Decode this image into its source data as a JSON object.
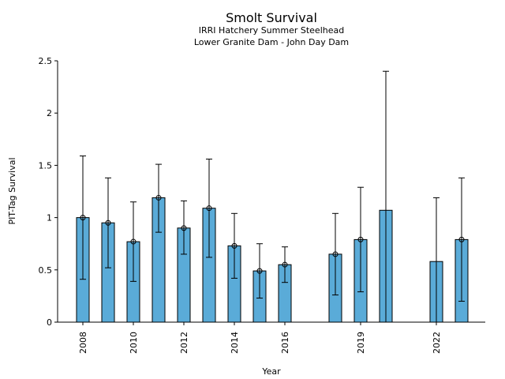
{
  "chart_data": {
    "type": "bar",
    "title": "Smolt Survival",
    "subtitle_line1": "IRRI Hatchery Summer Steelhead",
    "subtitle_line2": "Lower Granite Dam - John Day Dam",
    "xlabel": "Year",
    "ylabel": "PIT-Tag Survival",
    "ylim": [
      0,
      2.5
    ],
    "xlim": [
      2007.5,
      2023.5
    ],
    "yticks": [
      0,
      0.5,
      1,
      1.5,
      2,
      2.5
    ],
    "ytick_labels": [
      "0",
      "0.5",
      "1",
      "1.5",
      "2",
      "2.5"
    ],
    "xticks": [
      2008,
      2010,
      2012,
      2014,
      2016,
      2019,
      2022
    ],
    "xtick_labels": [
      "2008",
      "2010",
      "2012",
      "2014",
      "2016",
      "2019",
      "2022"
    ],
    "bar_color": "#5aabd8",
    "grid": false,
    "data": [
      {
        "year": 2008,
        "value": 1.0,
        "lower": 0.41,
        "upper": 1.59,
        "marker": true
      },
      {
        "year": 2009,
        "value": 0.95,
        "lower": 0.52,
        "upper": 1.38,
        "marker": true
      },
      {
        "year": 2010,
        "value": 0.77,
        "lower": 0.39,
        "upper": 1.15,
        "marker": true
      },
      {
        "year": 2011,
        "value": 1.19,
        "lower": 0.86,
        "upper": 1.51,
        "marker": true
      },
      {
        "year": 2012,
        "value": 0.9,
        "lower": 0.65,
        "upper": 1.16,
        "marker": true
      },
      {
        "year": 2013,
        "value": 1.09,
        "lower": 0.62,
        "upper": 1.56,
        "marker": true
      },
      {
        "year": 2014,
        "value": 0.73,
        "lower": 0.42,
        "upper": 1.04,
        "marker": true
      },
      {
        "year": 2015,
        "value": 0.49,
        "lower": 0.23,
        "upper": 0.75,
        "marker": true
      },
      {
        "year": 2016,
        "value": 0.55,
        "lower": 0.38,
        "upper": 0.72,
        "marker": true
      },
      {
        "year": 2018,
        "value": 0.65,
        "lower": 0.26,
        "upper": 1.04,
        "marker": true
      },
      {
        "year": 2019,
        "value": 0.79,
        "lower": 0.29,
        "upper": 1.29,
        "marker": true
      },
      {
        "year": 2020,
        "value": 1.07,
        "lower": 0.0,
        "upper": 2.4,
        "marker": false
      },
      {
        "year": 2022,
        "value": 0.58,
        "lower": 0.0,
        "upper": 1.19,
        "marker": false
      },
      {
        "year": 2023,
        "value": 0.79,
        "lower": 0.2,
        "upper": 1.38,
        "marker": true
      }
    ]
  }
}
